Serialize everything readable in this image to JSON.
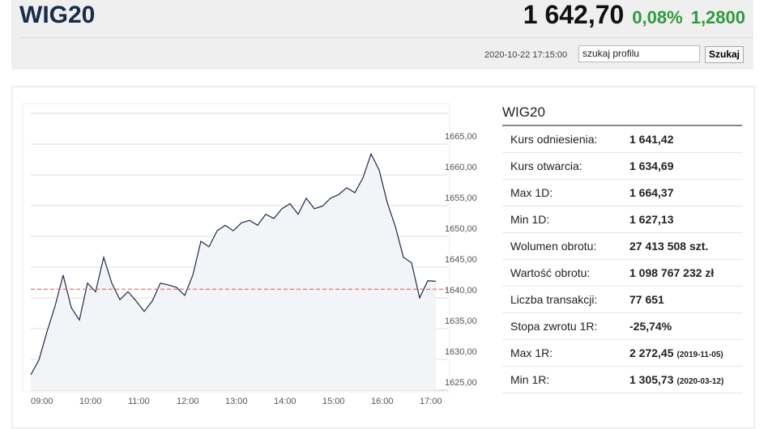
{
  "header": {
    "title": "WIG20",
    "price": "1 642,70",
    "change_pct": "0,08%",
    "change": "1,2800",
    "timestamp": "2020-10-22 17:15:00",
    "search_placeholder": "szukaj profilu",
    "search_button": "Szukaj"
  },
  "chart_data": {
    "type": "line",
    "x": [
      "09:00",
      "09:10",
      "09:20",
      "09:30",
      "09:40",
      "09:50",
      "10:00",
      "10:10",
      "10:20",
      "10:30",
      "10:40",
      "10:50",
      "11:00",
      "11:10",
      "11:20",
      "11:30",
      "11:40",
      "11:50",
      "12:00",
      "12:10",
      "12:20",
      "12:30",
      "12:40",
      "12:50",
      "13:00",
      "13:10",
      "13:20",
      "13:30",
      "13:40",
      "13:50",
      "14:00",
      "14:10",
      "14:20",
      "14:30",
      "14:40",
      "14:50",
      "15:00",
      "15:10",
      "15:20",
      "15:30",
      "15:40",
      "15:50",
      "16:00",
      "16:10",
      "16:20",
      "16:30",
      "16:40",
      "16:50",
      "17:00",
      "17:10",
      "17:20"
    ],
    "series": [
      {
        "name": "WIG20",
        "color": "#1c2a48",
        "values": [
          1627.5,
          1629.9,
          1634.5,
          1638.7,
          1643.7,
          1638.4,
          1636.4,
          1642.4,
          1641,
          1646.6,
          1642.4,
          1639.7,
          1641,
          1639.5,
          1637.8,
          1639.5,
          1642.4,
          1642.1,
          1641.7,
          1640.4,
          1643.7,
          1649.2,
          1648.3,
          1650.9,
          1651.8,
          1650.9,
          1652.2,
          1652.6,
          1651.8,
          1653.6,
          1652.9,
          1654.5,
          1655.3,
          1653.6,
          1656.2,
          1654.5,
          1654.9,
          1656.2,
          1656.8,
          1657.9,
          1657.1,
          1659.5,
          1663.4,
          1660.8,
          1655.5,
          1651.6,
          1646.6,
          1645.7,
          1640,
          1642.8,
          1642.7
        ]
      }
    ],
    "reference_line": 1641.42,
    "reference_color": "#e05555",
    "xlim": [
      "09:00",
      "17:30"
    ],
    "xticks": [
      "09:00",
      "10:00",
      "11:00",
      "12:00",
      "13:00",
      "14:00",
      "15:00",
      "16:00",
      "17:00"
    ],
    "ylim": [
      1625,
      1670
    ],
    "yticks": [
      {
        "value": 1625,
        "label": "1625,00"
      },
      {
        "value": 1630,
        "label": "1630,00"
      },
      {
        "value": 1635,
        "label": "1635,00"
      },
      {
        "value": 1640,
        "label": "1640,00"
      },
      {
        "value": 1645,
        "label": "1645,00"
      },
      {
        "value": 1650,
        "label": "1650,00"
      },
      {
        "value": 1655,
        "label": "1655,00"
      },
      {
        "value": 1660,
        "label": "1660,00"
      },
      {
        "value": 1665,
        "label": "1665,00"
      }
    ],
    "grid": true
  },
  "table": {
    "title": "WIG20",
    "rows": [
      {
        "label": "Kurs odniesienia:",
        "value": "1 641,42"
      },
      {
        "label": "Kurs otwarcia:",
        "value": "1 634,69"
      },
      {
        "label": "Max 1D:",
        "value": "1 664,37"
      },
      {
        "label": "Min 1D:",
        "value": "1 627,13"
      },
      {
        "label": "Wolumen obrotu:",
        "value": "27 413 508 szt."
      },
      {
        "label": "Wartość obrotu:",
        "value": "1 098 767 232 zł"
      },
      {
        "label": "Liczba transakcji:",
        "value": "77 651"
      },
      {
        "label": "Stopa zwrotu 1R:",
        "value": "-25,74%"
      },
      {
        "label": "Max 1R:",
        "value": "2 272,45",
        "date": "(2019-11-05)"
      },
      {
        "label": "Min 1R:",
        "value": "1 305,73",
        "date": "(2020-03-12)"
      }
    ]
  }
}
